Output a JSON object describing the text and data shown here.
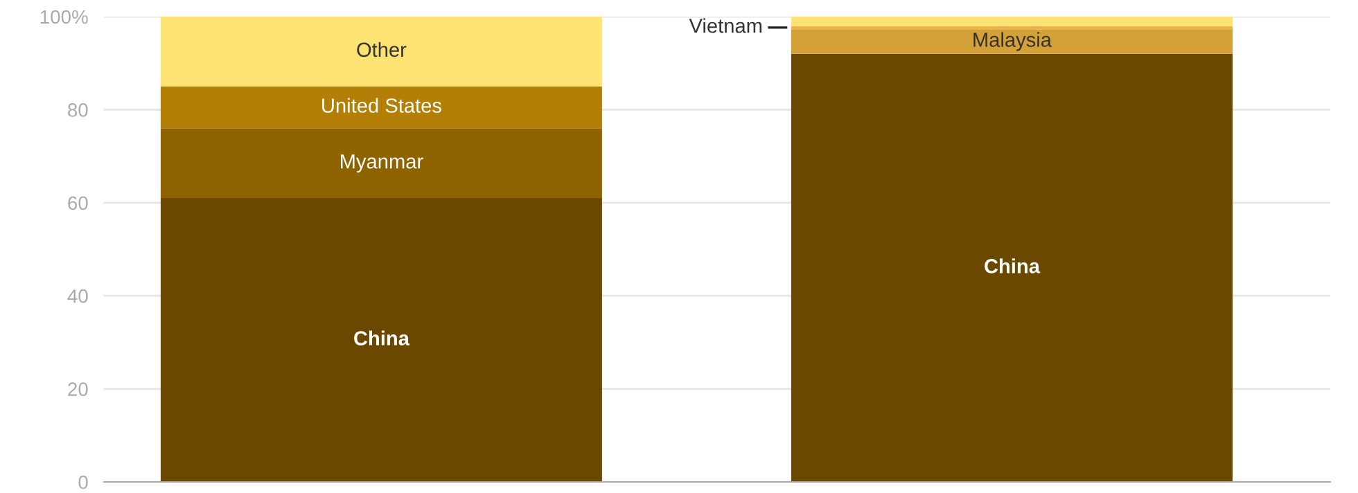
{
  "chart_data": {
    "type": "bar",
    "stacked": true,
    "categories": [
      null,
      null
    ],
    "series": [
      {
        "name": "China",
        "color": "#6b4800",
        "values": [
          61,
          92
        ]
      },
      {
        "name": "Myanmar",
        "color": "#8f6400",
        "values": [
          15,
          null
        ]
      },
      {
        "name": "United States",
        "color": "#b37f06",
        "values": [
          9,
          null
        ]
      },
      {
        "name": "Malaysia",
        "color": "#d4a038",
        "values": [
          null,
          5.3
        ]
      },
      {
        "name": "Vietnam",
        "color": "#ebb443",
        "values": [
          null,
          0.7
        ]
      },
      {
        "name": "Other",
        "color": "#fde274",
        "values": [
          15,
          2
        ]
      }
    ],
    "ylim": [
      0,
      100
    ],
    "yticks": [
      0,
      20,
      40,
      60,
      80,
      {
        "value": 100,
        "label": "100%"
      }
    ],
    "grid": "y",
    "legend": false
  }
}
